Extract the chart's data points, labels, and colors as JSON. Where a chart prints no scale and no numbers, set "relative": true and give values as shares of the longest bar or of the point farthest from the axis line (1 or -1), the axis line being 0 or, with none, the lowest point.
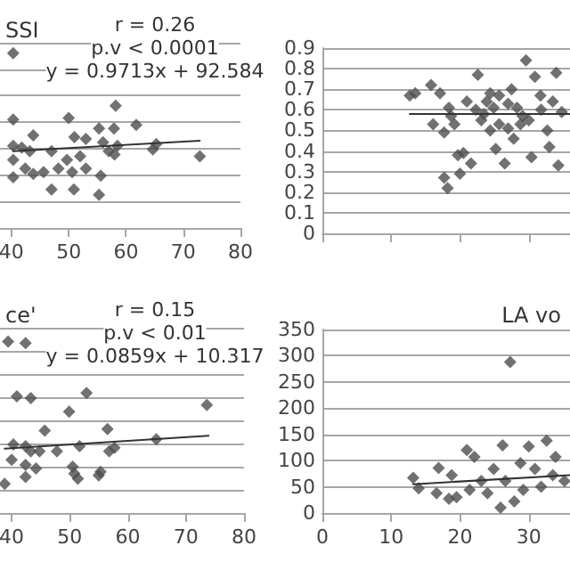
{
  "chart_data": [
    {
      "type": "scatter",
      "title": "SSI",
      "annotations": [
        "r = 0.26",
        "p.v < 0.0001",
        "y = 0.9713x + 92.584"
      ],
      "relative": true,
      "xlim": [
        38,
        80
      ],
      "xticks": [
        40,
        50,
        60,
        70,
        80
      ],
      "tick_labels": "x",
      "grid": "y",
      "series": [
        {
          "marker": "diamond",
          "color": "#4d4d4d",
          "x": [
            40.3,
            58.2,
            50,
            61.8,
            55.3,
            57.9,
            40.3,
            43.8,
            51,
            53,
            56,
            58.5,
            65.3,
            64.7,
            40.3,
            41.8,
            43.2,
            47,
            49.7,
            52,
            57,
            58,
            40.3,
            42.4,
            43.8,
            45.6,
            48.2,
            50.6,
            53,
            55.6,
            47,
            50.9,
            55.3,
            40.3,
            72.9
          ],
          "values": [
            1.0,
            0.7,
            0.63,
            0.59,
            0.57,
            0.57,
            0.62,
            0.53,
            0.52,
            0.51,
            0.49,
            0.47,
            0.48,
            0.45,
            0.47,
            0.46,
            0.44,
            0.44,
            0.39,
            0.41,
            0.44,
            0.42,
            0.39,
            0.34,
            0.31,
            0.32,
            0.34,
            0.32,
            0.34,
            0.3,
            0.22,
            0.22,
            0.19,
            0.29,
            0.41
          ]
        },
        {
          "type": "line",
          "marker": "none",
          "color": "#333333",
          "x": [
            40.3,
            72.9
          ],
          "values": [
            0.44,
            0.5
          ]
        }
      ]
    },
    {
      "type": "scatter",
      "ylim": [
        0,
        0.9
      ],
      "yticks": [
        0,
        0.1,
        0.2,
        0.3,
        0.4,
        0.5,
        0.6,
        0.7,
        0.8,
        0.9
      ],
      "xlim": [
        0,
        36
      ],
      "xticks": [
        0,
        10,
        20,
        30
      ],
      "tick_labels": "y",
      "grid": "y",
      "series": [
        {
          "marker": "diamond",
          "color": "#4d4d4d",
          "x": [
            12.7,
            13.5,
            15.8,
            17.1,
            16.1,
            17.7,
            18.4,
            18.7,
            19.2,
            17.7,
            18.2,
            19.7,
            20,
            20.5,
            21.6,
            21,
            22.6,
            23.1,
            24.4,
            24.9,
            25.7,
            25.2,
            26.5,
            27.8,
            29.1,
            29.6,
            30.4,
            30.9,
            31.7,
            32.7,
            33,
            34,
            34.3,
            34.8,
            22.3,
            23.5,
            23.9,
            25.7,
            27,
            28.3,
            24.4,
            27,
            28.8,
            30,
            27.5,
            31.8,
            33.5
          ],
          "values": [
            0.67,
            0.68,
            0.72,
            0.68,
            0.53,
            0.49,
            0.61,
            0.57,
            0.53,
            0.27,
            0.22,
            0.38,
            0.29,
            0.39,
            0.34,
            0.64,
            0.77,
            0.55,
            0.68,
            0.61,
            0.53,
            0.41,
            0.34,
            0.46,
            0.57,
            0.84,
            0.37,
            0.76,
            0.67,
            0.5,
            0.42,
            0.78,
            0.33,
            0.59,
            0.6,
            0.58,
            0.64,
            0.67,
            0.63,
            0.61,
            0.5,
            0.51,
            0.53,
            0.55,
            0.7,
            0.6,
            0.64
          ]
        },
        {
          "type": "line",
          "marker": "none",
          "color": "#333333",
          "x": [
            12.7,
            36
          ],
          "values": [
            0.58,
            0.58
          ]
        }
      ]
    },
    {
      "type": "scatter",
      "title": "ce'",
      "annotations": [
        "r = 0.15",
        "p.v < 0.01",
        "y = 0.0859x + 10.317"
      ],
      "relative": true,
      "xlim": [
        38,
        80
      ],
      "xticks": [
        40,
        50,
        60,
        70,
        80
      ],
      "tick_labels": "x",
      "grid": "y",
      "series": [
        {
          "marker": "diamond",
          "color": "#4d4d4d",
          "x": [
            39.4,
            42.4,
            40.9,
            43.3,
            52.9,
            49.9,
            45.7,
            56.5,
            73.6,
            40.3,
            42.4,
            43.3,
            44.8,
            47.8,
            51.7,
            56.8,
            57.7,
            64.9,
            40,
            42.4,
            44.2,
            42.4,
            50.5,
            50.8,
            51.4,
            55.3,
            55,
            38.8
          ],
          "values": [
            1.0,
            0.99,
            0.68,
            0.67,
            0.7,
            0.59,
            0.48,
            0.49,
            0.63,
            0.4,
            0.39,
            0.36,
            0.36,
            0.36,
            0.39,
            0.36,
            0.38,
            0.43,
            0.31,
            0.28,
            0.26,
            0.21,
            0.27,
            0.23,
            0.2,
            0.24,
            0.22,
            0.17
          ]
        },
        {
          "type": "line",
          "marker": "none",
          "color": "#333333",
          "x": [
            38.8,
            73.9
          ],
          "values": [
            0.375,
            0.45
          ]
        }
      ]
    },
    {
      "type": "scatter",
      "title": "LA vo",
      "ylim": [
        0,
        350
      ],
      "yticks": [
        0,
        50,
        100,
        150,
        200,
        250,
        300,
        350
      ],
      "xlim": [
        0,
        36
      ],
      "xticks": [
        0,
        10,
        20,
        30
      ],
      "grid": "y",
      "series": [
        {
          "marker": "diamond",
          "color": "#4d4d4d",
          "x": [
            27.3,
            13.2,
            14,
            16.6,
            16.9,
            18.4,
            19.5,
            18.8,
            21,
            22.1,
            26.2,
            25.9,
            30,
            32.6,
            27.9,
            23.1,
            24.9,
            28.8,
            30.9,
            33.5,
            24,
            29.2,
            26.6,
            31.8,
            21.4,
            33.9,
            35.2
          ],
          "values": [
            288,
            67,
            47,
            38,
            86,
            27,
            30,
            72,
            120,
            107,
            129,
            10,
            127,
            138,
            22,
            61,
            84,
            95,
            84,
            72,
            38,
            44,
            61,
            50,
            44,
            107,
            61
          ]
        },
        {
          "type": "line",
          "marker": "none",
          "color": "#333333",
          "x": [
            13.2,
            36
          ],
          "values": [
            55,
            72
          ]
        }
      ]
    }
  ]
}
